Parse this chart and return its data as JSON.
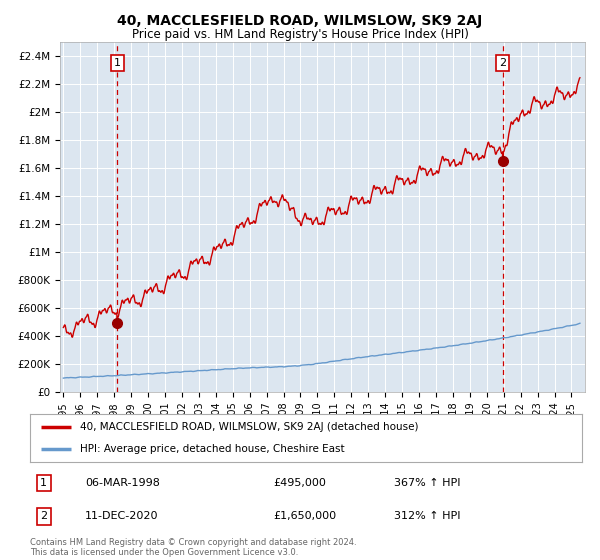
{
  "title": "40, MACCLESFIELD ROAD, WILMSLOW, SK9 2AJ",
  "subtitle": "Price paid vs. HM Land Registry's House Price Index (HPI)",
  "title_fontsize": 10,
  "subtitle_fontsize": 8.5,
  "background_color": "#ffffff",
  "plot_background_color": "#dce6f0",
  "grid_color": "#ffffff",
  "ylim": [
    0,
    2500000
  ],
  "yticks": [
    0,
    200000,
    400000,
    600000,
    800000,
    1000000,
    1200000,
    1400000,
    1600000,
    1800000,
    2000000,
    2200000,
    2400000
  ],
  "ytick_labels": [
    "£0",
    "£200K",
    "£400K",
    "£600K",
    "£800K",
    "£1M",
    "£1.2M",
    "£1.4M",
    "£1.6M",
    "£1.8M",
    "£2M",
    "£2.2M",
    "£2.4M"
  ],
  "red_line_color": "#cc0000",
  "blue_line_color": "#6699cc",
  "marker_color": "#990000",
  "dashed_line_color": "#cc0000",
  "legend_label_red": "40, MACCLESFIELD ROAD, WILMSLOW, SK9 2AJ (detached house)",
  "legend_label_blue": "HPI: Average price, detached house, Cheshire East",
  "sale1_date_num": 1998.18,
  "sale1_price": 495000,
  "sale1_label": "1",
  "sale1_text": "06-MAR-1998",
  "sale1_price_text": "£495,000",
  "sale1_hpi_text": "367% ↑ HPI",
  "sale2_date_num": 2020.95,
  "sale2_price": 1650000,
  "sale2_label": "2",
  "sale2_text": "11-DEC-2020",
  "sale2_price_text": "£1,650,000",
  "sale2_hpi_text": "312% ↑ HPI",
  "footer_text1": "Contains HM Land Registry data © Crown copyright and database right 2024.",
  "footer_text2": "This data is licensed under the Open Government Licence v3.0.",
  "xlim_min": 1994.8,
  "xlim_max": 2025.8
}
